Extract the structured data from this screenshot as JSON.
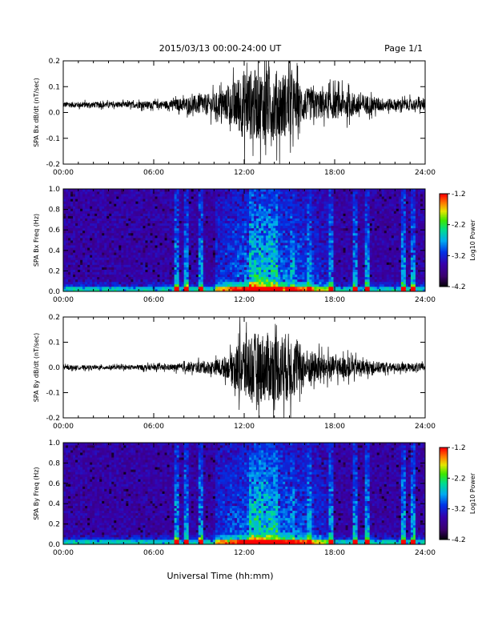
{
  "header": {
    "title": "2015/03/13  00:00-24:00 UT",
    "page": "Page 1/1"
  },
  "footer": {
    "xlabel": "Universal Time (hh:mm)"
  },
  "colorbar_labels": {
    "label": "Log10 Power",
    "ticks": [
      "-1.2",
      "-2.2",
      "-3.2",
      "-4.2"
    ]
  },
  "chart_data": [
    {
      "type": "line",
      "ylabel": "SPA Bx dB/dt (nT/sec)",
      "xlim": [
        0,
        24
      ],
      "ylim": [
        -0.2,
        0.2
      ],
      "x_ticks": [
        "00:00",
        "06:00",
        "12:00",
        "18:00",
        "24:00"
      ],
      "y_ticks": [
        "0.2",
        "0.1",
        "0.0",
        "-0.1",
        "-0.2"
      ],
      "series": [
        {
          "values_hourly_envelope": [
            0.02,
            0.02,
            0.02,
            0.02,
            0.02,
            0.025,
            0.025,
            0.03,
            0.05,
            0.07,
            0.08,
            0.12,
            0.25,
            0.25,
            0.25,
            0.22,
            0.12,
            0.1,
            0.1,
            0.09,
            0.07,
            0.05,
            0.04,
            0.04
          ],
          "baseline": 0.03
        }
      ]
    },
    {
      "type": "heatmap",
      "ylabel": "SPA Bx Freq (Hz)",
      "xlim": [
        0,
        24
      ],
      "ylim": [
        0,
        1.0
      ],
      "x_ticks": [
        "00:00",
        "06:00",
        "12:00",
        "18:00",
        "24:00"
      ],
      "y_ticks": [
        "1.0",
        "0.8",
        "0.6",
        "0.4",
        "0.2",
        "0.0"
      ],
      "colorbar": {
        "label": "Log10 Power",
        "range": [
          -4.2,
          -1.2
        ]
      }
    },
    {
      "type": "line",
      "ylabel": "SPA By dB/dt (nT/sec)",
      "xlim": [
        0,
        24
      ],
      "ylim": [
        -0.2,
        0.2
      ],
      "x_ticks": [
        "00:00",
        "06:00",
        "12:00",
        "18:00",
        "24:00"
      ],
      "y_ticks": [
        "0.2",
        "0.1",
        "0.0",
        "-0.1",
        "-0.2"
      ],
      "series": [
        {
          "values_hourly_envelope": [
            0.015,
            0.015,
            0.015,
            0.015,
            0.015,
            0.02,
            0.02,
            0.02,
            0.03,
            0.04,
            0.05,
            0.08,
            0.25,
            0.25,
            0.25,
            0.25,
            0.14,
            0.1,
            0.08,
            0.07,
            0.05,
            0.04,
            0.03,
            0.03
          ],
          "baseline": 0.0
        }
      ]
    },
    {
      "type": "heatmap",
      "ylabel": "SPA By Freq (Hz)",
      "xlim": [
        0,
        24
      ],
      "ylim": [
        0,
        1.0
      ],
      "x_ticks": [
        "00:00",
        "06:00",
        "12:00",
        "18:00",
        "24:00"
      ],
      "y_ticks": [
        "1.0",
        "0.8",
        "0.6",
        "0.4",
        "0.2",
        "0.0"
      ],
      "colorbar": {
        "label": "Log10 Power",
        "range": [
          -4.2,
          -1.2
        ]
      }
    }
  ]
}
